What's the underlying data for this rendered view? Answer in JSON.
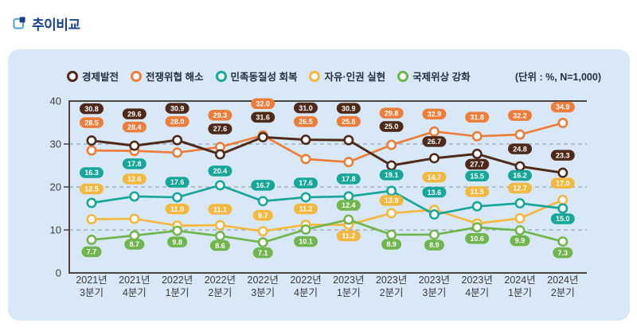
{
  "header": {
    "title": "추이비교"
  },
  "chart_data": {
    "type": "line",
    "unit": "(단위 : %, N=1,000)",
    "categories": [
      "2021년 3분기",
      "2021년 4분기",
      "2022년 1분기",
      "2022년 2분기",
      "2022년 3분기",
      "2022년 4분기",
      "2023년 1분기",
      "2023년 2분기",
      "2023년 3분기",
      "2023년 4분기",
      "2024년 1분기",
      "2024년 2분기"
    ],
    "series": [
      {
        "name": "경제발전",
        "color": "#4e2a1b",
        "values": [
          30.8,
          29.6,
          30.9,
          27.6,
          31.6,
          31.0,
          30.9,
          25.0,
          26.7,
          27.7,
          24.8,
          23.3
        ]
      },
      {
        "name": "전쟁위협 해소",
        "color": "#ec7d3a",
        "values": [
          28.5,
          28.4,
          28.0,
          29.3,
          32.0,
          26.5,
          25.8,
          29.8,
          32.9,
          31.8,
          32.2,
          34.9
        ]
      },
      {
        "name": "민족동질성 회복",
        "color": "#17a79a",
        "values": [
          16.3,
          17.8,
          17.6,
          20.4,
          16.7,
          17.6,
          17.8,
          19.1,
          13.6,
          15.5,
          16.2,
          15.0
        ]
      },
      {
        "name": "자유·인권 실현",
        "color": "#f3b840",
        "values": [
          12.5,
          12.6,
          11.0,
          11.1,
          9.7,
          11.2,
          11.2,
          13.9,
          14.7,
          11.5,
          12.7,
          17.0
        ]
      },
      {
        "name": "국제위상 강화",
        "color": "#70b54e",
        "values": [
          7.7,
          8.7,
          9.8,
          8.6,
          7.1,
          10.1,
          12.4,
          8.9,
          8.9,
          10.6,
          9.9,
          7.3
        ]
      }
    ],
    "ylim": [
      0,
      40
    ],
    "yticks": [
      0,
      10,
      20,
      30,
      40
    ],
    "legend_position": "top",
    "grid": "horizontal-dashed"
  }
}
